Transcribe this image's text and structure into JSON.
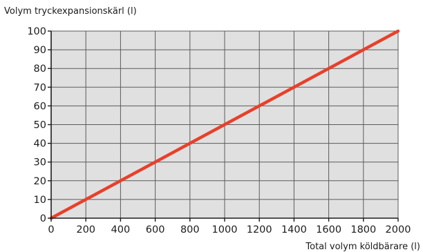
{
  "chart_data": {
    "type": "line",
    "title": "",
    "ylabel": "Volym tryckexpansionskärl (l)",
    "xlabel": "Total volym köldbärare (l)",
    "xlim": [
      0,
      2000
    ],
    "ylim": [
      0,
      100
    ],
    "xticks": [
      0,
      200,
      400,
      600,
      800,
      1000,
      1200,
      1400,
      1600,
      1800,
      2000
    ],
    "yticks": [
      0,
      10,
      20,
      30,
      40,
      50,
      60,
      70,
      80,
      90,
      100
    ],
    "grid": true,
    "legend": "none",
    "series": [
      {
        "x": [
          0,
          2000
        ],
        "y": [
          0,
          100
        ],
        "color": "#e8402a"
      }
    ],
    "colors": {
      "plot_bg": "#e0e0e0",
      "grid": "#5a5a5a",
      "axis": "#1a1a1a",
      "line": "#e8402a"
    }
  }
}
